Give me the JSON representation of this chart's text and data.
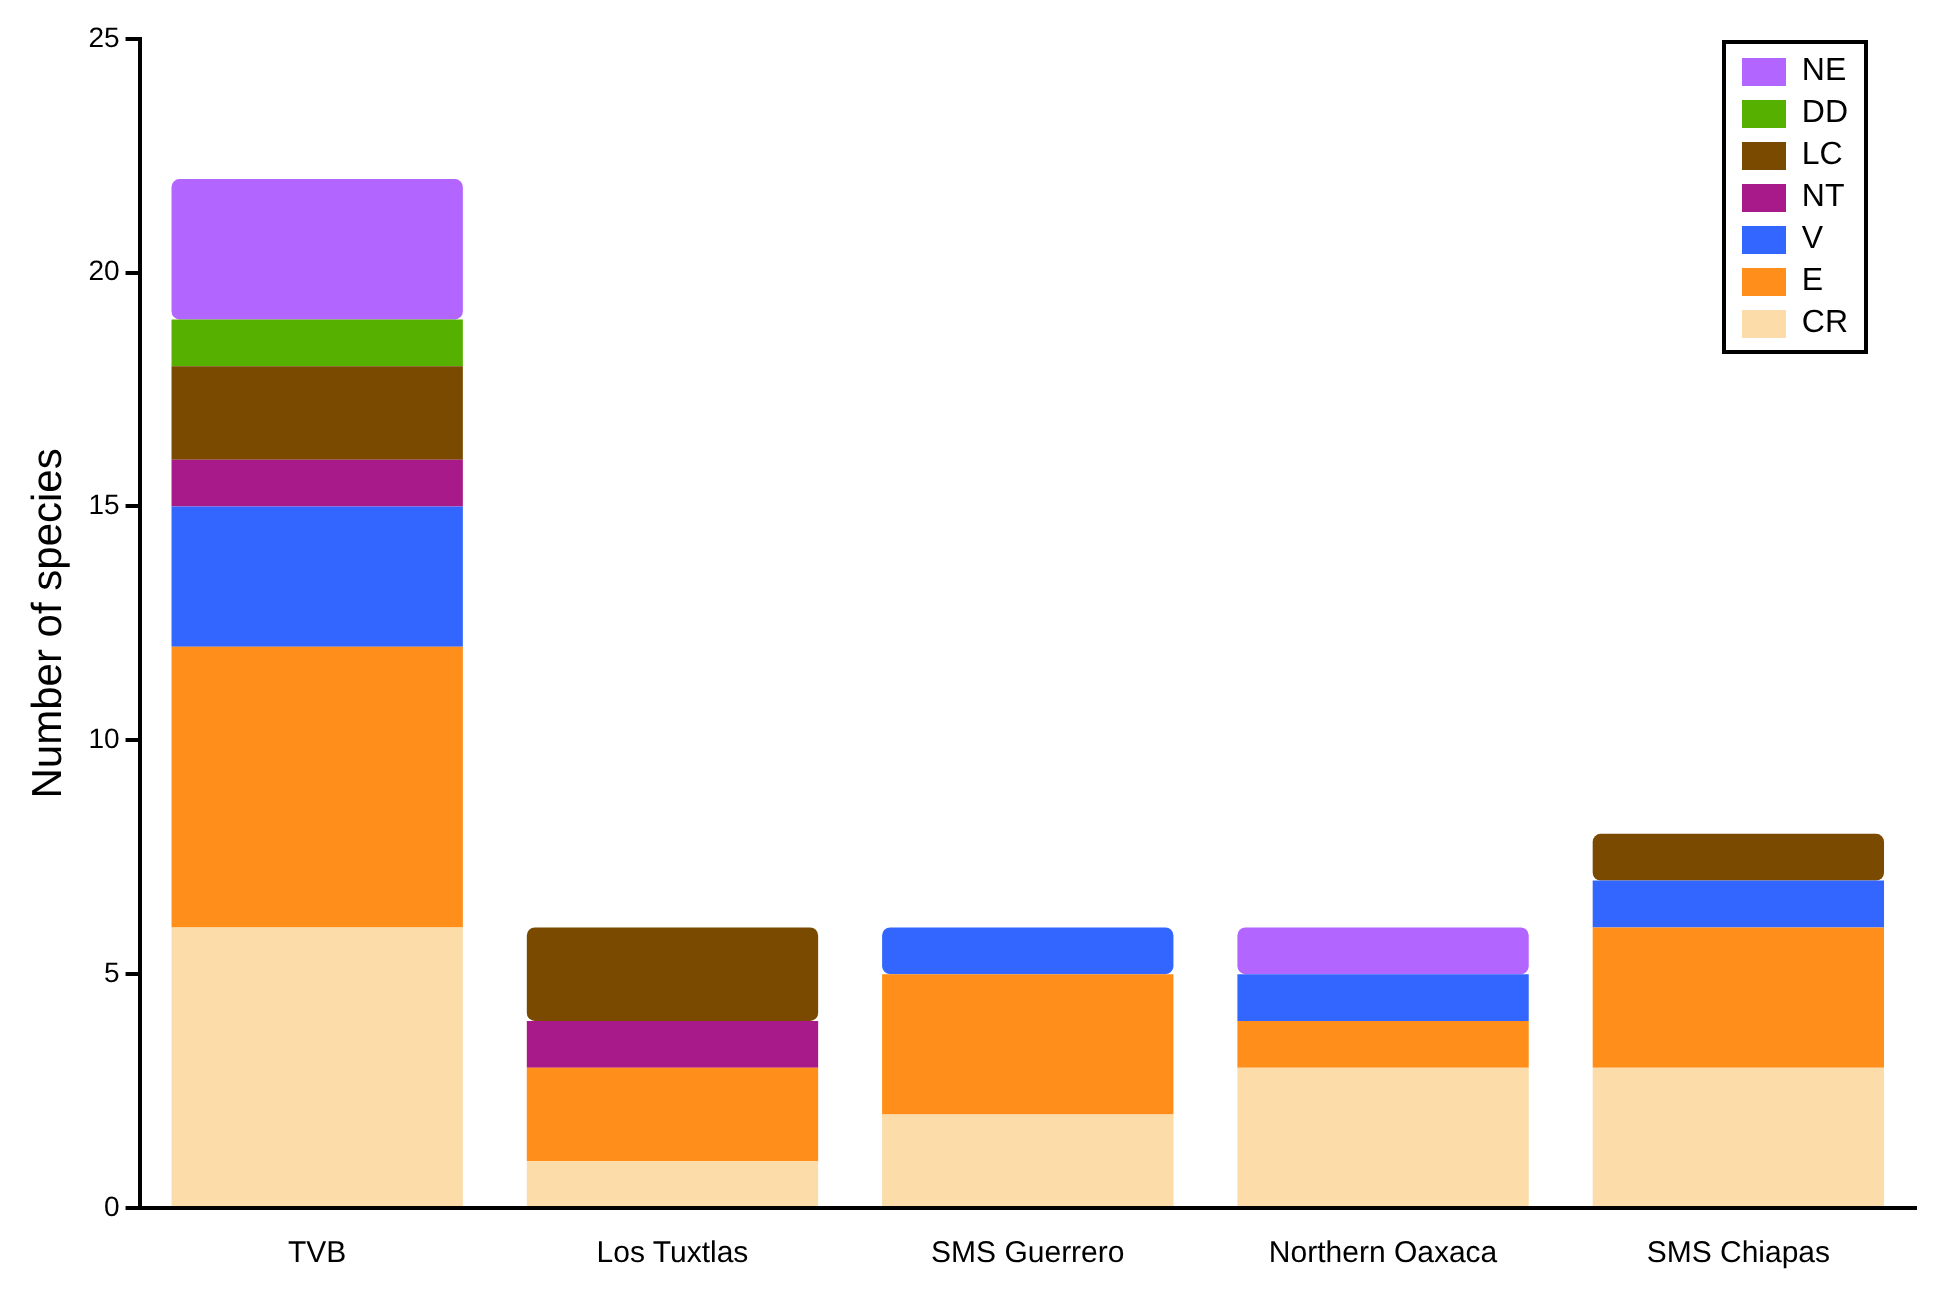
{
  "chart_data": {
    "type": "bar",
    "stacked": true,
    "ylabel": "Number of species",
    "categories": [
      "TVB",
      "Los Tuxtlas",
      "SMS Guerrero",
      "Northern Oaxaca",
      "SMS Chiapas"
    ],
    "series": [
      {
        "name": "CR",
        "color": "#fcdca8",
        "values": [
          6,
          1,
          2,
          3,
          3
        ]
      },
      {
        "name": "E",
        "color": "#ff8f1a",
        "values": [
          6,
          2,
          3,
          1,
          3
        ]
      },
      {
        "name": "V",
        "color": "#3366ff",
        "values": [
          3,
          0,
          1,
          1,
          1
        ]
      },
      {
        "name": "NT",
        "color": "#a8198a",
        "values": [
          1,
          1,
          0,
          0,
          0
        ]
      },
      {
        "name": "LC",
        "color": "#7a4a00",
        "values": [
          2,
          2,
          0,
          0,
          1
        ]
      },
      {
        "name": "DD",
        "color": "#55b000",
        "values": [
          1,
          0,
          0,
          0,
          0
        ]
      },
      {
        "name": "NE",
        "color": "#b366ff",
        "values": [
          3,
          0,
          0,
          1,
          0
        ]
      }
    ],
    "ylim": [
      0,
      25
    ],
    "yticks": [
      0,
      5,
      10,
      15,
      20,
      25
    ],
    "grid": false,
    "legend": "top right"
  }
}
